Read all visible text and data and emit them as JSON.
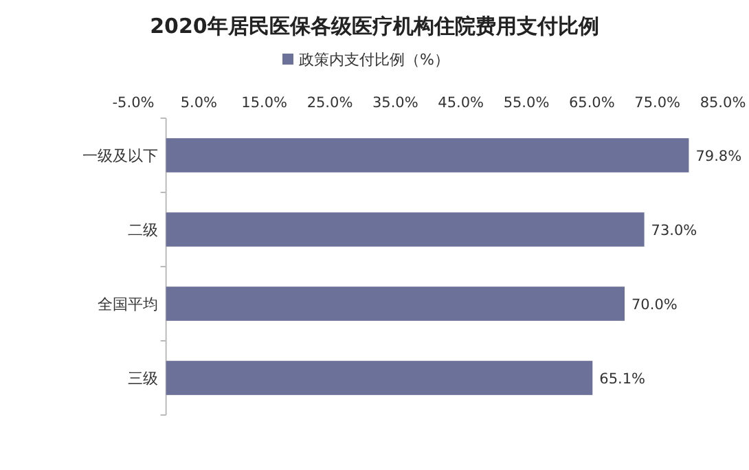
{
  "chart_data": {
    "type": "bar",
    "orientation": "horizontal",
    "title": "2020年居民医保各级医疗机构住院费用支付比例",
    "categories": [
      "一级及以下",
      "二级",
      "全国平均",
      "三级"
    ],
    "series": [
      {
        "name": "政策内支付比例（%）",
        "color": "#6b7199",
        "values": [
          79.8,
          73.0,
          70.0,
          65.1
        ],
        "value_labels": [
          "79.8%",
          "73.0%",
          "70.0%",
          "65.1%"
        ]
      }
    ],
    "xlim": [
      -5,
      85
    ],
    "xticks": [
      {
        "value": -5,
        "label": "-5.0%"
      },
      {
        "value": 5,
        "label": "5.0%"
      },
      {
        "value": 15,
        "label": "15.0%"
      },
      {
        "value": 25,
        "label": "25.0%"
      },
      {
        "value": 35,
        "label": "35.0%"
      },
      {
        "value": 45,
        "label": "45.0%"
      },
      {
        "value": 55,
        "label": "55.0%"
      },
      {
        "value": 65,
        "label": "65.0%"
      },
      {
        "value": 75,
        "label": "75.0%"
      },
      {
        "value": 85,
        "label": "85.0%"
      }
    ],
    "legend": "top"
  }
}
